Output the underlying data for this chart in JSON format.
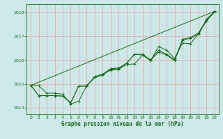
{
  "xlabel": "Graphe pression niveau de la mer (hPa)",
  "bg_color": "#cce8e8",
  "grid_color": "#e8aaaa",
  "line_color": "#1a6b1a",
  "xlim": [
    -0.5,
    23.5
  ],
  "ylim": [
    1013.75,
    1018.35
  ],
  "yticks": [
    1014,
    1015,
    1016,
    1017,
    1018
  ],
  "xticks": [
    0,
    1,
    2,
    3,
    4,
    5,
    6,
    7,
    8,
    9,
    10,
    11,
    12,
    13,
    14,
    15,
    16,
    17,
    18,
    19,
    20,
    21,
    22,
    23
  ],
  "smooth_line_x": [
    0,
    23
  ],
  "smooth_line_y": [
    1014.95,
    1018.05
  ],
  "line1": [
    1014.95,
    1014.93,
    1014.62,
    1014.62,
    1014.58,
    1014.17,
    1014.28,
    1014.95,
    1015.28,
    1015.42,
    1015.58,
    1015.62,
    1015.82,
    1015.85,
    1016.22,
    1015.98,
    1016.58,
    1016.42,
    1016.08,
    1016.72,
    1016.7,
    1017.12,
    1017.72,
    1018.05
  ],
  "line2": [
    1014.95,
    1014.52,
    1014.52,
    1014.52,
    1014.5,
    1014.22,
    1014.92,
    1014.92,
    1015.28,
    1015.38,
    1015.62,
    1015.65,
    1015.88,
    1016.25,
    1016.22,
    1016.0,
    1016.35,
    1016.22,
    1015.98,
    1016.85,
    1016.92,
    1017.1,
    1017.65,
    1018.02
  ],
  "line3": [
    1014.95,
    1014.52,
    1014.52,
    1014.52,
    1014.5,
    1014.22,
    1014.92,
    1014.92,
    1015.32,
    1015.42,
    1015.65,
    1015.68,
    1015.88,
    1016.25,
    1016.25,
    1016.02,
    1016.42,
    1016.25,
    1016.02,
    1016.88,
    1016.95,
    1017.15,
    1017.68,
    1018.05
  ]
}
